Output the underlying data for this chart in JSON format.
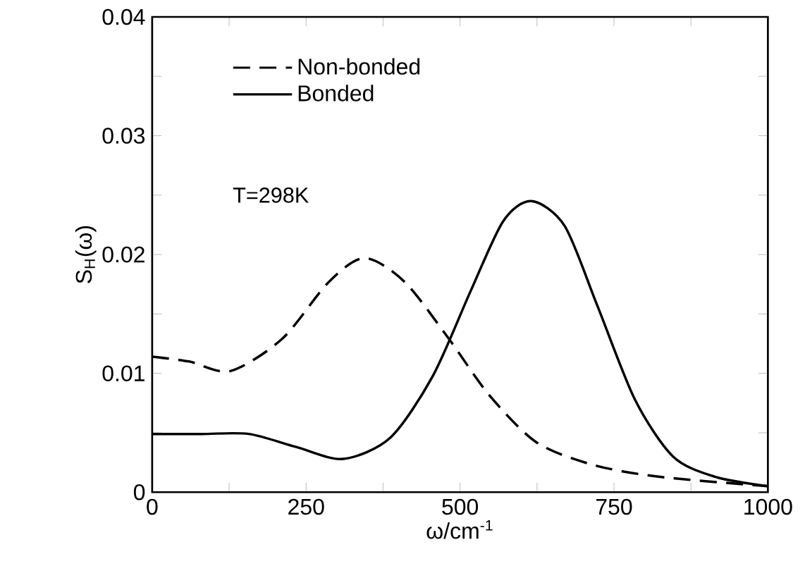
{
  "chart_data": {
    "type": "line",
    "xlabel": "ω/cm$^{-1}$",
    "ylabel": "S$_{H}$(ω)",
    "annotations": [
      "T=298K"
    ],
    "xlim": [
      0,
      1000
    ],
    "ylim": [
      0,
      0.04
    ],
    "xticks": [
      0,
      {
        "value": 125,
        "label": null
      },
      250,
      {
        "value": 375,
        "label": null
      },
      500,
      {
        "value": 625,
        "label": null
      },
      750,
      {
        "value": 875,
        "label": null
      },
      1000
    ],
    "yticks": [
      0,
      {
        "value": 0.005,
        "label": null
      },
      0.01,
      {
        "value": 0.015,
        "label": null
      },
      0.02,
      {
        "value": 0.025,
        "label": null
      },
      0.03,
      {
        "value": 0.035,
        "label": null
      },
      0.04
    ],
    "legend": "top left",
    "grid": false,
    "marker": "none",
    "series": [
      {
        "name": "Non-bonded",
        "color": "#000000",
        "line_style": "dashed",
        "x": [
          0,
          60,
          127,
          211,
          287,
          345,
          410,
          482,
          547,
          624,
          716,
          823,
          1000
        ],
        "values": [
          0.0114,
          0.011,
          0.0102,
          0.0129,
          0.0177,
          0.0197,
          0.0177,
          0.0129,
          0.0082,
          0.0042,
          0.0023,
          0.0013,
          0.0005
        ]
      },
      {
        "name": "Bonded",
        "color": "#000000",
        "line_style": "solid",
        "x": [
          0,
          80,
          157,
          234,
          310,
          387,
          456,
          517,
          570,
          616,
          670,
          723,
          784,
          846,
          914,
          1000
        ],
        "values": [
          0.0049,
          0.0049,
          0.0049,
          0.0038,
          0.0028,
          0.0046,
          0.0098,
          0.0169,
          0.0228,
          0.0245,
          0.0224,
          0.0157,
          0.0078,
          0.003,
          0.0013,
          0.0005
        ]
      }
    ]
  }
}
